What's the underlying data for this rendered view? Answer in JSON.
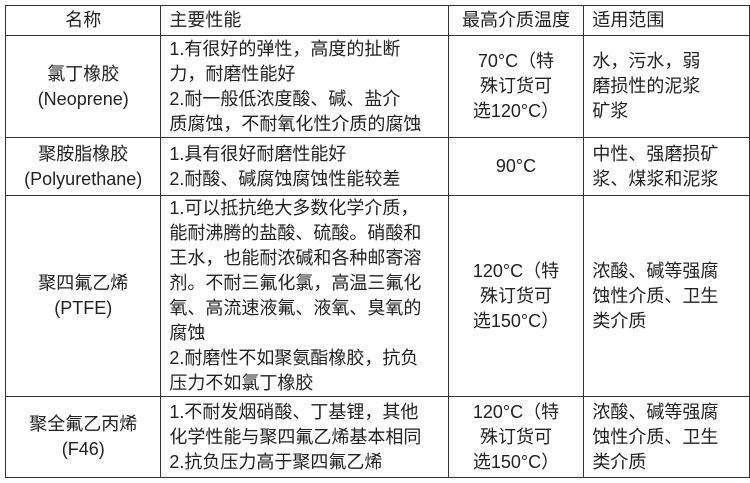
{
  "headers": [
    "名称",
    "主要性能",
    "最高介质温度",
    "适用范围"
  ],
  "rows": [
    {
      "name": "氯丁橡胶\n(Neoprene)",
      "performance": "1.有很好的弹性，高度的扯断\n力，耐磨性能好\n2.耐一般低浓度酸、碱、盐介\n质腐蚀，不耐氧化性介质的腐蚀",
      "max_temp": "70°C（特\n殊订货可\n选120°C）",
      "scope": "水，污水，弱\n磨损性的泥浆\n矿浆"
    },
    {
      "name": "聚胺脂橡胶\n(Polyurethane)",
      "performance": "1.具有很好耐磨性能好\n2.耐酸、碱腐蚀腐蚀性能较差",
      "max_temp": "90°C",
      "scope": "中性、强磨损矿\n浆、煤浆和泥浆"
    },
    {
      "name": "聚四氟乙烯\n(PTFE)",
      "performance": "1.可以抵抗绝大多数化学介质，\n能耐沸腾的盐酸、硫酸。硝酸和\n王水，也能耐浓碱和各种邮寄溶\n剂。不耐三氟化氯，高温三氟化\n氧、高流速液氟、液氧、臭氧的\n腐蚀\n2.耐磨性不如聚氨酯橡胶，抗负\n压力不如氯丁橡胶",
      "max_temp": "120°C（特\n殊订货可\n选150°C）",
      "scope": "浓酸、碱等强腐\n蚀性介质、卫生\n类介质"
    },
    {
      "name": "聚全氟乙丙烯\n(F46)",
      "performance": "1.不耐发烟硝酸、丁基锂，其他\n化学性能与聚四氟乙烯基本相同\n2.抗负压力高于聚四氟乙烯",
      "max_temp": "120°C（特\n殊订货可\n选150°C）",
      "scope": "浓酸、碱等强腐\n蚀性介质、卫生\n类介质"
    }
  ]
}
